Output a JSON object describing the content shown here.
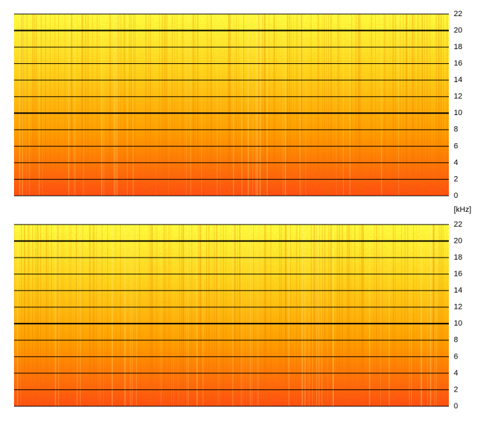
{
  "chart_data": [
    {
      "type": "spectrogram",
      "ylim": [
        0,
        22
      ],
      "yticks": [
        0,
        2,
        4,
        6,
        8,
        10,
        12,
        14,
        16,
        18,
        20,
        22
      ],
      "y_label": "[kHz]",
      "emphasized_ticks": [
        10,
        20
      ],
      "colormap": [
        "#ff4a12",
        "#ff9a00",
        "#ffd21a",
        "#ffff40"
      ],
      "grid": true
    },
    {
      "type": "spectrogram",
      "ylim": [
        0,
        22
      ],
      "yticks": [
        0,
        2,
        4,
        6,
        8,
        10,
        12,
        14,
        16,
        18,
        20,
        22
      ],
      "emphasized_ticks": [
        10,
        20
      ],
      "colormap": [
        "#ff4a12",
        "#ff9a00",
        "#ffd21a",
        "#ffff40"
      ],
      "grid": true
    }
  ]
}
